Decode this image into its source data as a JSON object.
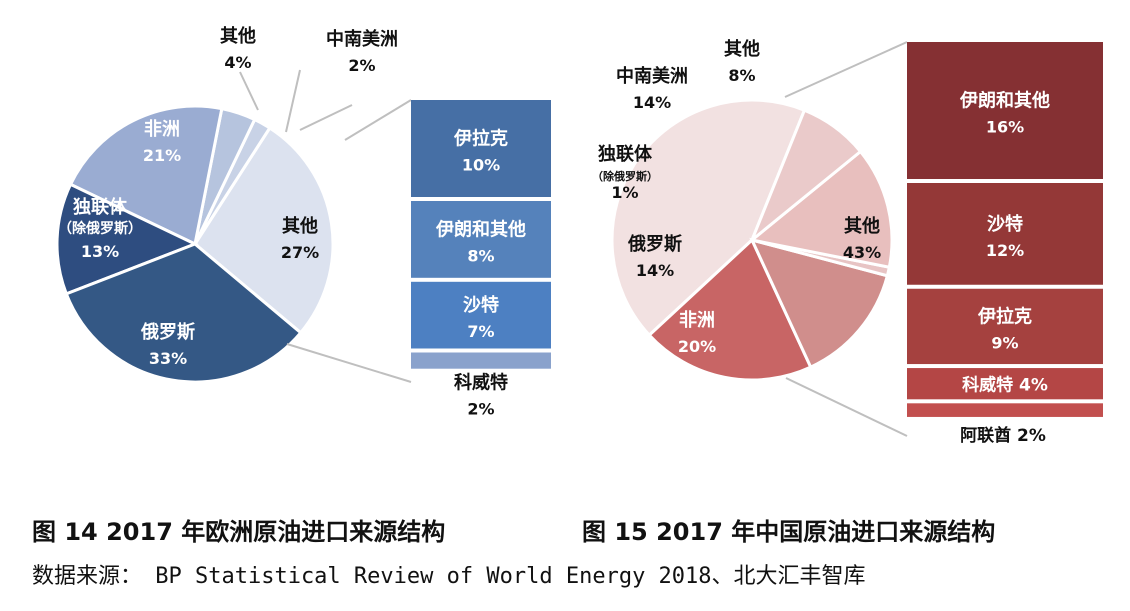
{
  "captions": {
    "left": "图 14 2017 年欧洲原油进口来源结构",
    "right": "图 15 2017 年中国原油进口来源结构"
  },
  "source": "数据来源： BP Statistical Review of World Energy 2018、北大汇丰智库",
  "chart_data": [
    {
      "type": "pie",
      "title": "图 14 2017 年欧洲原油进口来源结构",
      "slices": [
        {
          "label": "其他",
          "value": 27,
          "pct": "27%",
          "color": "#dce2ef"
        },
        {
          "label": "中南美洲",
          "value": 2,
          "pct": "2%",
          "color": "#c8d2e6"
        },
        {
          "label": "其他",
          "value": 4,
          "pct": "4%",
          "color": "#b6c4de"
        },
        {
          "label": "非洲",
          "value": 21,
          "pct": "21%",
          "color": "#9aacd2"
        },
        {
          "label": "独联体",
          "sublabel": "（除俄罗斯）",
          "value": 13,
          "pct": "13%",
          "color": "#2e4d80"
        },
        {
          "label": "俄罗斯",
          "value": 33,
          "pct": "33%",
          "color": "#345885"
        }
      ],
      "breakdown": {
        "of": "其他",
        "items": [
          {
            "label": "伊拉克",
            "value": 10,
            "pct": "10%",
            "color": "#466fa5"
          },
          {
            "label": "伊朗和其他",
            "value": 8,
            "pct": "8%",
            "color": "#5582bb"
          },
          {
            "label": "沙特",
            "value": 7,
            "pct": "7%",
            "color": "#4d80c2"
          },
          {
            "label": "科威特",
            "value": 2,
            "pct": "2%",
            "color": "#8aa2cc"
          }
        ]
      }
    },
    {
      "type": "pie",
      "title": "图 15 2017 年中国原油进口来源结构",
      "slices": [
        {
          "label": "其他",
          "value": 43,
          "pct": "43%",
          "color": "#f2e1e1"
        },
        {
          "label": "非洲",
          "value": 20,
          "pct": "20%",
          "color": "#c86565"
        },
        {
          "label": "俄罗斯",
          "value": 14,
          "pct": "14%",
          "color": "#d08e8c"
        },
        {
          "label": "独联体",
          "sublabel": "（除俄罗斯）",
          "value": 1,
          "pct": "1%",
          "color": "#e7c4c4"
        },
        {
          "label": "中南美洲",
          "value": 14,
          "pct": "14%",
          "color": "#e8bfbe"
        },
        {
          "label": "其他",
          "value": 8,
          "pct": "8%",
          "color": "#eacaca"
        }
      ],
      "breakdown": {
        "of": "其他",
        "items": [
          {
            "label": "伊朗和其他",
            "value": 16,
            "pct": "16%",
            "color": "#853033"
          },
          {
            "label": "沙特",
            "value": 12,
            "pct": "12%",
            "color": "#943837"
          },
          {
            "label": "伊拉克",
            "value": 9,
            "pct": "9%",
            "color": "#a5413f"
          },
          {
            "label": "科威特",
            "value": 4,
            "pct": "4%",
            "color": "#b44645"
          },
          {
            "label": "阿联酋",
            "value": 2,
            "pct": "2%",
            "color": "#c24f4e"
          }
        ]
      }
    }
  ]
}
